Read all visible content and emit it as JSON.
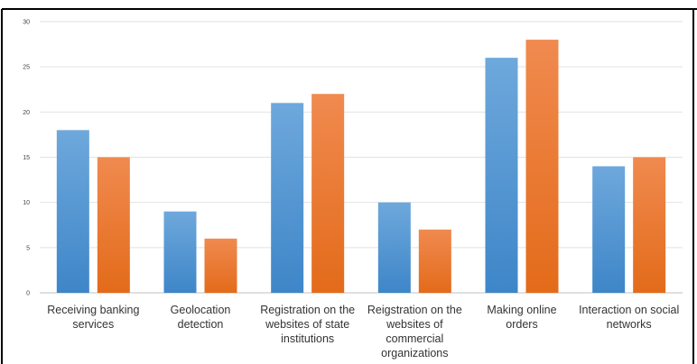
{
  "chart_data": {
    "type": "bar",
    "title": "",
    "xlabel": "",
    "ylabel": "",
    "ylim": [
      0,
      30
    ],
    "yticks": [
      0,
      5,
      10,
      15,
      20,
      25,
      30
    ],
    "grid": true,
    "legend": "none",
    "categories": [
      [
        "Receiving banking",
        "services"
      ],
      [
        "Geolocation",
        "detection"
      ],
      [
        "Registration on the",
        "websites of state",
        "institutions"
      ],
      [
        "Reigstration on the",
        "websites of",
        "commercial",
        "organizations"
      ],
      [
        "Making online",
        "orders"
      ],
      [
        "Interaction on social",
        "networks"
      ]
    ],
    "series": [
      {
        "values": [
          18,
          9,
          21,
          10,
          26,
          14
        ],
        "color": "#5b9bd5"
      },
      {
        "values": [
          15,
          6,
          22,
          7,
          28,
          15
        ],
        "color": "#ed7d31"
      }
    ]
  }
}
